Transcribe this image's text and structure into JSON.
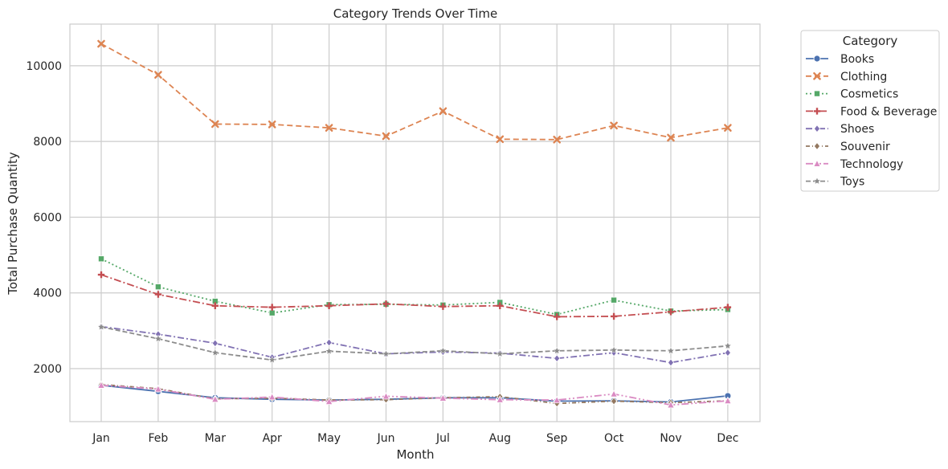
{
  "chart_data": {
    "type": "line",
    "title": "Category Trends Over Time",
    "xlabel": "Month",
    "ylabel": "Total Purchase Quantity",
    "categories": [
      "Jan",
      "Feb",
      "Mar",
      "Apr",
      "May",
      "Jun",
      "Jul",
      "Aug",
      "Sep",
      "Oct",
      "Nov",
      "Dec"
    ],
    "ylim": [
      600,
      11100
    ],
    "yticks": [
      2000,
      4000,
      6000,
      8000,
      10000
    ],
    "grid": true,
    "legend": {
      "title": "Category",
      "placement": "outside-top-right"
    },
    "series": [
      {
        "name": "Books",
        "color": "#4c72b0",
        "dash": "",
        "marker": "circle",
        "values": [
          1560,
          1400,
          1230,
          1190,
          1170,
          1190,
          1230,
          1230,
          1140,
          1150,
          1120,
          1280
        ]
      },
      {
        "name": "Clothing",
        "color": "#dd8452",
        "dash": "7,4",
        "marker": "x",
        "values": [
          10580,
          9760,
          8460,
          8450,
          8360,
          8140,
          8800,
          8060,
          8050,
          8420,
          8100,
          8360
        ]
      },
      {
        "name": "Cosmetics",
        "color": "#55a868",
        "dash": "2,3",
        "marker": "square",
        "values": [
          4900,
          4160,
          3780,
          3470,
          3690,
          3700,
          3680,
          3750,
          3430,
          3810,
          3520,
          3560
        ]
      },
      {
        "name": "Food & Beverage",
        "color": "#c44e52",
        "dash": "9,3,2,3",
        "marker": "plus",
        "values": [
          4480,
          3960,
          3660,
          3620,
          3660,
          3710,
          3640,
          3660,
          3370,
          3380,
          3500,
          3620
        ]
      },
      {
        "name": "Shoes",
        "color": "#8172b3",
        "dash": "8,3,2,3",
        "marker": "diamond",
        "values": [
          3110,
          2910,
          2670,
          2300,
          2690,
          2390,
          2440,
          2410,
          2270,
          2420,
          2160,
          2420
        ]
      },
      {
        "name": "Souvenir",
        "color": "#937860",
        "dash": "5,3,1,3",
        "marker": "diamond",
        "values": [
          1580,
          1470,
          1200,
          1220,
          1170,
          1180,
          1230,
          1260,
          1080,
          1140,
          1100,
          1150
        ]
      },
      {
        "name": "Technology",
        "color": "#da8bc3",
        "dash": "9,3,2,3,2,3",
        "marker": "triangle",
        "values": [
          1560,
          1460,
          1190,
          1250,
          1130,
          1270,
          1220,
          1180,
          1170,
          1330,
          1040,
          1150
        ]
      },
      {
        "name": "Toys",
        "color": "#8c8c8c",
        "dash": "6,3",
        "marker": "star",
        "values": [
          3100,
          2790,
          2420,
          2230,
          2460,
          2390,
          2470,
          2390,
          2470,
          2490,
          2470,
          2600
        ]
      }
    ]
  }
}
